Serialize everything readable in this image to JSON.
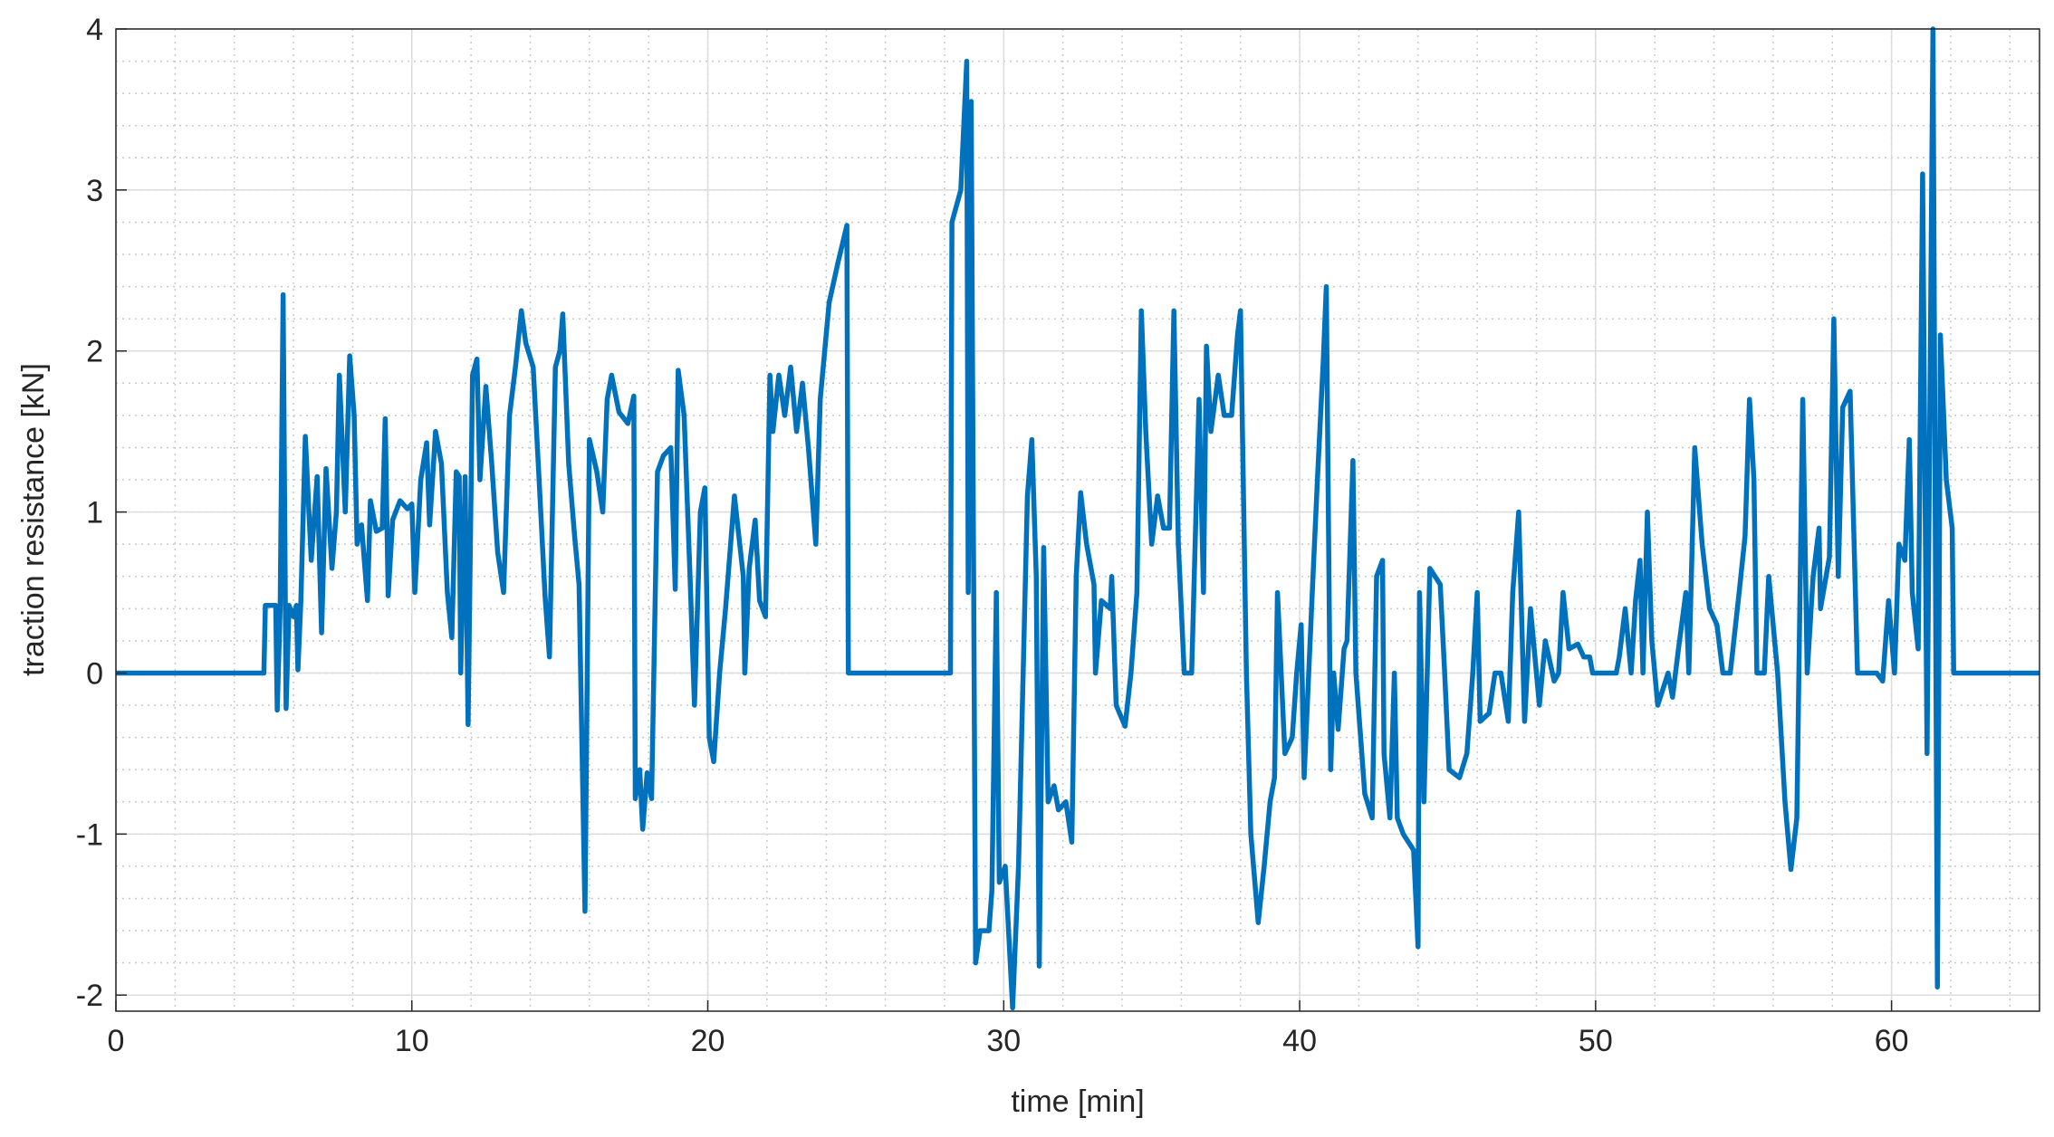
{
  "chart_data": {
    "type": "line",
    "x_label": "time [min]",
    "y_label": "traction resistance [kN]",
    "xlim": [
      0,
      65
    ],
    "ylim": [
      -2.1,
      4
    ],
    "xticks": [
      0,
      10,
      20,
      30,
      40,
      50,
      60
    ],
    "yticks": [
      -2,
      -1,
      0,
      1,
      2,
      3,
      4
    ],
    "grid": true,
    "minor_grid": true,
    "series": [
      {
        "color": "#0072BD",
        "x": [
          0,
          5.0,
          5.05,
          5.4,
          5.45,
          5.55,
          5.65,
          5.75,
          5.85,
          6.0,
          6.1,
          6.15,
          6.25,
          6.4,
          6.6,
          6.8,
          6.95,
          7.1,
          7.3,
          7.45,
          7.55,
          7.75,
          7.9,
          8.05,
          8.15,
          8.3,
          8.5,
          8.6,
          8.8,
          9.0,
          9.1,
          9.2,
          9.35,
          9.6,
          9.85,
          10.0,
          10.1,
          10.3,
          10.5,
          10.6,
          10.8,
          11.0,
          11.2,
          11.35,
          11.5,
          11.6,
          11.65,
          11.8,
          11.9,
          12.05,
          12.2,
          12.3,
          12.5,
          12.7,
          12.9,
          13.1,
          13.3,
          13.5,
          13.7,
          13.85,
          14.1,
          14.3,
          14.5,
          14.65,
          14.85,
          15.0,
          15.1,
          15.3,
          15.5,
          15.65,
          15.85,
          16.0,
          16.25,
          16.45,
          16.6,
          16.75,
          17.0,
          17.3,
          17.5,
          17.55,
          17.7,
          17.8,
          17.95,
          18.1,
          18.3,
          18.5,
          18.75,
          18.9,
          19.0,
          19.2,
          19.4,
          19.55,
          19.75,
          19.9,
          20.05,
          20.2,
          20.4,
          20.6,
          20.9,
          21.2,
          21.25,
          21.4,
          21.6,
          21.75,
          21.95,
          22.1,
          22.2,
          22.4,
          22.6,
          22.8,
          23.0,
          23.2,
          23.4,
          23.65,
          23.8,
          24.1,
          24.4,
          24.7,
          24.75,
          28.2,
          28.25,
          28.55,
          28.75,
          28.8,
          28.9,
          29.05,
          29.2,
          29.5,
          29.6,
          29.75,
          29.85,
          30.05,
          30.3,
          30.5,
          30.8,
          30.95,
          31.1,
          31.2,
          31.35,
          31.5,
          31.7,
          31.85,
          32.1,
          32.3,
          32.45,
          32.6,
          32.8,
          33.05,
          33.1,
          33.3,
          33.6,
          33.65,
          33.8,
          34.1,
          34.3,
          34.5,
          34.65,
          34.8,
          35.0,
          35.2,
          35.4,
          35.6,
          35.75,
          35.9,
          36.1,
          36.35,
          36.6,
          36.75,
          36.85,
          37.0,
          37.25,
          37.45,
          37.7,
          37.9,
          38.0,
          38.2,
          38.35,
          38.6,
          38.8,
          39.0,
          39.15,
          39.25,
          39.5,
          39.75,
          39.9,
          40.05,
          40.15,
          40.45,
          40.6,
          40.8,
          40.9,
          41.05,
          41.15,
          41.3,
          41.5,
          41.6,
          41.8,
          41.9,
          42.2,
          42.45,
          42.6,
          42.8,
          42.85,
          43.05,
          43.2,
          43.3,
          43.5,
          43.85,
          44.0,
          44.05,
          44.2,
          44.4,
          44.75,
          44.9,
          45.05,
          45.4,
          45.65,
          45.85,
          46.0,
          46.1,
          46.4,
          46.6,
          46.8,
          47.05,
          47.2,
          47.4,
          47.6,
          47.8,
          48.1,
          48.3,
          48.6,
          48.75,
          48.9,
          49.1,
          49.4,
          49.6,
          49.8,
          49.9,
          50.7,
          50.8,
          51.0,
          51.2,
          51.35,
          51.5,
          51.6,
          51.75,
          51.9,
          52.1,
          52.45,
          52.6,
          52.8,
          53.05,
          53.15,
          53.35,
          53.6,
          53.85,
          54.1,
          54.3,
          54.55,
          54.85,
          55.05,
          55.2,
          55.35,
          55.45,
          55.7,
          55.85,
          56.15,
          56.4,
          56.6,
          56.8,
          57.0,
          57.15,
          57.35,
          57.55,
          57.6,
          57.9,
          58.05,
          58.2,
          58.35,
          58.6,
          58.85,
          59.1,
          59.5,
          59.7,
          59.9,
          60.1,
          60.25,
          60.45,
          60.6,
          60.7,
          60.9,
          61.05,
          61.2,
          61.4,
          61.55,
          61.65,
          61.85,
          62.05,
          62.1,
          65
        ],
        "values": [
          0,
          0,
          0.42,
          0.42,
          -0.23,
          0.4,
          2.35,
          -0.22,
          0.42,
          0.35,
          0.42,
          0.02,
          0.45,
          1.47,
          0.7,
          1.22,
          0.25,
          1.27,
          0.65,
          1.0,
          1.85,
          1.0,
          1.97,
          1.6,
          0.8,
          0.92,
          0.45,
          1.07,
          0.88,
          0.9,
          1.58,
          0.48,
          0.95,
          1.07,
          1.02,
          1.05,
          0.5,
          1.2,
          1.43,
          0.92,
          1.5,
          1.3,
          0.5,
          0.22,
          1.25,
          1.22,
          0.0,
          1.22,
          -0.32,
          1.85,
          1.95,
          1.2,
          1.78,
          1.3,
          0.75,
          0.5,
          1.6,
          1.9,
          2.25,
          2.05,
          1.9,
          1.2,
          0.48,
          0.1,
          1.9,
          2.0,
          2.23,
          1.3,
          0.85,
          0.55,
          -1.48,
          1.45,
          1.25,
          1.0,
          1.7,
          1.85,
          1.62,
          1.55,
          1.72,
          -0.78,
          -0.6,
          -0.97,
          -0.62,
          -0.78,
          1.25,
          1.35,
          1.4,
          0.52,
          1.88,
          1.6,
          0.6,
          -0.2,
          1.0,
          1.15,
          -0.4,
          -0.55,
          0.0,
          0.4,
          1.1,
          0.6,
          0.0,
          0.65,
          0.95,
          0.45,
          0.35,
          1.85,
          1.5,
          1.85,
          1.6,
          1.9,
          1.5,
          1.8,
          1.4,
          0.8,
          1.7,
          2.3,
          2.55,
          2.78,
          0,
          0,
          2.8,
          3.0,
          3.8,
          0.5,
          3.55,
          -1.8,
          -1.6,
          -1.6,
          -1.35,
          0.5,
          -1.3,
          -1.2,
          -2.08,
          -1.2,
          1.1,
          1.45,
          0.6,
          -1.82,
          0.78,
          -0.8,
          -0.7,
          -0.85,
          -0.8,
          -1.05,
          0.6,
          1.12,
          0.8,
          0.55,
          0.0,
          0.45,
          0.4,
          0.6,
          -0.2,
          -0.33,
          0.0,
          0.5,
          2.25,
          1.5,
          0.8,
          1.1,
          0.9,
          0.9,
          2.25,
          0.8,
          0.0,
          0.0,
          1.7,
          0.5,
          2.03,
          1.5,
          1.85,
          1.6,
          1.6,
          2.1,
          2.25,
          0.0,
          -1.0,
          -1.55,
          -1.2,
          -0.8,
          -0.65,
          0.5,
          -0.5,
          -0.4,
          0.0,
          0.3,
          -0.65,
          0.6,
          1.2,
          1.95,
          2.4,
          -0.6,
          0.0,
          -0.35,
          0.15,
          0.2,
          1.32,
          0.0,
          -0.75,
          -0.9,
          0.6,
          0.7,
          -0.5,
          -0.9,
          0.0,
          -0.9,
          -1.0,
          -1.1,
          -1.7,
          0.5,
          -0.8,
          0.65,
          0.55,
          0.0,
          -0.6,
          -0.65,
          -0.5,
          0.0,
          0.5,
          -0.3,
          -0.25,
          0.0,
          0.0,
          -0.3,
          0.5,
          1.0,
          -0.3,
          0.4,
          -0.2,
          0.2,
          -0.05,
          0.0,
          0.5,
          0.15,
          0.18,
          0.1,
          0.1,
          0.0,
          0.0,
          0.1,
          0.4,
          0.0,
          0.45,
          0.7,
          0.0,
          1.0,
          0.2,
          -0.2,
          0.0,
          -0.15,
          0.15,
          0.5,
          0.0,
          1.4,
          0.8,
          0.4,
          0.3,
          0.0,
          0.0,
          0.5,
          0.85,
          1.7,
          1.2,
          0.0,
          0.0,
          0.6,
          0.0,
          -0.8,
          -1.22,
          -0.9,
          1.7,
          0.0,
          0.6,
          0.9,
          0.4,
          0.72,
          2.2,
          0.6,
          1.65,
          1.75,
          0.0,
          0.0,
          0.0,
          -0.05,
          0.45,
          0.0,
          0.8,
          0.7,
          1.45,
          0.5,
          0.15,
          3.1,
          -0.5,
          4.0,
          -1.95,
          2.1,
          1.2,
          0.9,
          0,
          0
        ]
      }
    ]
  }
}
